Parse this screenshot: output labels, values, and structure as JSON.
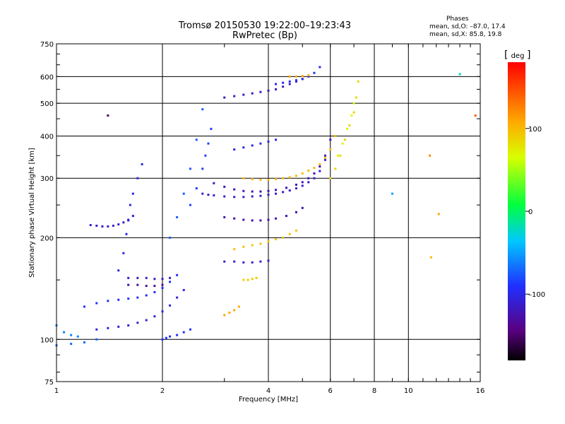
{
  "title_line1": "Tromsø 20150530 19:22:00–19:23:43",
  "title_line2": "RwPretec (Bp)",
  "phases": {
    "heading": "Phases",
    "o_line": "mean, sd,O: –87.0, 17.4",
    "x_line": "mean, sd,X: 85.8, 19.8"
  },
  "colorbar": {
    "label": "deg",
    "ticks": [
      "100",
      "0",
      "–100"
    ],
    "tick_values": [
      100,
      0,
      -100
    ],
    "range": [
      -180,
      180
    ]
  },
  "chart_data": {
    "type": "scatter",
    "title": "Tromsø 20150530 19:22:00–19:23:43",
    "subtitle": "RwPretec (Bp)",
    "xlabel": "Frequency [MHz]",
    "ylabel": "Stationary phase Virtual Height [km]",
    "xscale": "log",
    "yscale": "log",
    "xlim": [
      1,
      16
    ],
    "ylim": [
      75,
      750
    ],
    "xticks": [
      1,
      2,
      4,
      6,
      8,
      10,
      16
    ],
    "xtick_labels": [
      "1",
      "2",
      "4",
      "6",
      "8",
      "10",
      "16"
    ],
    "yticks": [
      75,
      100,
      200,
      300,
      400,
      500,
      600,
      750
    ],
    "ytick_labels": [
      "75",
      "100",
      "200",
      "300",
      "400",
      "500",
      "600",
      "750"
    ],
    "grid": true,
    "series": [
      {
        "x": [
          1.25,
          1.3,
          1.35,
          1.4,
          1.45,
          1.5,
          1.55,
          1.6,
          1.65
        ],
        "y": [
          218,
          217,
          216,
          216,
          217,
          219,
          222,
          226,
          232
        ],
        "phase": -110
      },
      {
        "x": [
          1.5,
          1.55,
          1.58,
          1.6,
          1.62,
          1.65,
          1.7,
          1.75
        ],
        "y": [
          160,
          180,
          205,
          225,
          250,
          270,
          300,
          330
        ],
        "phase": -100
      },
      {
        "x": [
          1.0,
          1.05,
          1.1,
          1.15
        ],
        "y": [
          110,
          105,
          103,
          102
        ],
        "phase": -60
      },
      {
        "x": [
          1.2,
          1.3,
          1.4,
          1.5,
          1.6,
          1.7,
          1.8,
          1.9,
          2.0,
          2.1,
          2.2
        ],
        "y": [
          125,
          128,
          130,
          131,
          132,
          133,
          135,
          138,
          142,
          148,
          155
        ],
        "phase": -90
      },
      {
        "x": [
          1.3,
          1.4,
          1.5,
          1.6,
          1.7,
          1.8,
          1.9,
          2.0,
          2.1,
          2.2,
          2.3
        ],
        "y": [
          107,
          108,
          109,
          110,
          112,
          114,
          117,
          121,
          126,
          133,
          140
        ],
        "phase": -105
      },
      {
        "x": [
          1.0,
          1.1,
          1.2,
          1.3
        ],
        "y": [
          96,
          97,
          98,
          100
        ],
        "phase": -70
      },
      {
        "x": [
          1.6,
          1.7,
          1.8,
          1.9,
          2.0,
          2.1
        ],
        "y": [
          152,
          152,
          152,
          151,
          151,
          152
        ],
        "phase": -115
      },
      {
        "x": [
          1.6,
          1.7,
          1.8,
          1.9,
          2.0
        ],
        "y": [
          145,
          145,
          144,
          144,
          145
        ],
        "phase": -130
      },
      {
        "x": [
          2.0,
          2.05,
          2.1,
          2.2,
          2.3,
          2.4
        ],
        "y": [
          100,
          101,
          102,
          103,
          105,
          107
        ],
        "phase": -90
      },
      {
        "x": [
          2.1,
          2.2,
          2.3,
          2.4,
          2.5,
          2.6
        ],
        "y": [
          200,
          230,
          270,
          320,
          390,
          480
        ],
        "phase": -75
      },
      {
        "x": [
          2.4,
          2.5,
          2.6,
          2.65,
          2.7,
          2.75
        ],
        "y": [
          250,
          280,
          320,
          350,
          380,
          420
        ],
        "phase": -85
      },
      {
        "x": [
          2.6,
          2.7,
          2.8,
          3.0,
          3.2,
          3.4,
          3.6,
          3.8,
          4.0,
          4.2,
          4.4,
          4.6,
          4.8,
          5.0,
          5.2,
          5.4,
          5.6,
          5.8
        ],
        "y": [
          270,
          268,
          267,
          265,
          264,
          264,
          265,
          266,
          268,
          270,
          273,
          276,
          280,
          285,
          292,
          300,
          315,
          340
        ],
        "phase": -110
      },
      {
        "x": [
          2.8,
          3.0,
          3.2,
          3.4,
          3.6,
          3.8,
          4.0,
          4.2,
          4.5,
          4.8,
          5.0,
          5.2,
          5.4,
          5.6,
          5.8,
          6.0
        ],
        "y": [
          290,
          283,
          278,
          275,
          274,
          274,
          275,
          277,
          281,
          287,
          292,
          300,
          310,
          325,
          350,
          390
        ],
        "phase": -120
      },
      {
        "x": [
          3.0,
          3.2,
          3.4,
          3.6,
          3.8,
          4.0,
          4.2,
          4.4,
          4.6,
          4.8,
          5.0
        ],
        "y": [
          520,
          525,
          530,
          535,
          540,
          545,
          550,
          560,
          570,
          580,
          590
        ],
        "phase": -115
      },
      {
        "x": [
          4.2,
          4.4,
          4.6,
          4.8,
          5.0,
          5.2,
          5.4,
          5.6
        ],
        "y": [
          570,
          575,
          580,
          585,
          590,
          600,
          615,
          640
        ],
        "phase": -95
      },
      {
        "x": [
          4.6,
          4.8,
          5.0,
          5.2
        ],
        "y": [
          600,
          600,
          602,
          605
        ],
        "phase": 110
      },
      {
        "x": [
          3.4,
          3.6,
          3.8,
          4.0,
          4.2,
          4.4,
          4.6,
          4.8,
          5.0,
          5.2,
          5.4,
          5.6,
          5.8,
          6.0,
          6.2
        ],
        "y": [
          300,
          298,
          297,
          297,
          298,
          300,
          302,
          305,
          310,
          316,
          322,
          330,
          345,
          365,
          400
        ],
        "phase": 100
      },
      {
        "x": [
          6.0,
          6.2,
          6.4,
          6.6,
          6.8,
          7.0,
          7.1,
          7.2
        ],
        "y": [
          300,
          320,
          350,
          390,
          430,
          470,
          520,
          580
        ],
        "phase": 85
      },
      {
        "x": [
          6.3,
          6.5,
          6.7,
          6.9,
          7.0
        ],
        "y": [
          350,
          380,
          420,
          460,
          500
        ],
        "phase": 70
      },
      {
        "x": [
          3.0,
          3.2,
          3.4,
          3.6,
          3.8,
          4.0
        ],
        "y": [
          170,
          170,
          169,
          169,
          170,
          171
        ],
        "phase": -110
      },
      {
        "x": [
          3.2,
          3.4,
          3.6,
          3.8,
          4.0,
          4.2,
          4.4,
          4.6,
          4.8
        ],
        "y": [
          185,
          188,
          190,
          192,
          195,
          198,
          200,
          205,
          210
        ],
        "phase": 95
      },
      {
        "x": [
          3.0,
          3.1,
          3.2,
          3.3
        ],
        "y": [
          118,
          120,
          122,
          125
        ],
        "phase": 110
      },
      {
        "x": [
          3.4,
          3.5,
          3.6,
          3.7
        ],
        "y": [
          150,
          150,
          151,
          152
        ],
        "phase": 90
      },
      {
        "x": [
          3.0,
          3.2,
          3.4,
          3.6,
          3.8,
          4.0,
          4.2,
          4.5,
          4.8,
          5.0
        ],
        "y": [
          230,
          228,
          226,
          225,
          225,
          226,
          228,
          232,
          238,
          245
        ],
        "phase": -125
      },
      {
        "x": [
          3.2,
          3.4,
          3.6,
          3.8,
          4.0,
          4.2
        ],
        "y": [
          365,
          370,
          375,
          380,
          385,
          390
        ],
        "phase": -100
      },
      {
        "x": [
          14.0
        ],
        "y": [
          610
        ],
        "phase": -20
      },
      {
        "x": [
          11.5
        ],
        "y": [
          350
        ],
        "phase": 120
      },
      {
        "x": [
          15.5
        ],
        "y": [
          460
        ],
        "phase": 140
      },
      {
        "x": [
          12.2
        ],
        "y": [
          235
        ],
        "phase": 110
      },
      {
        "x": [
          9.0
        ],
        "y": [
          270
        ],
        "phase": -50
      },
      {
        "x": [
          11.6
        ],
        "y": [
          175
        ],
        "phase": 100
      },
      {
        "x": [
          1.4
        ],
        "y": [
          460
        ],
        "phase": -150
      }
    ]
  }
}
